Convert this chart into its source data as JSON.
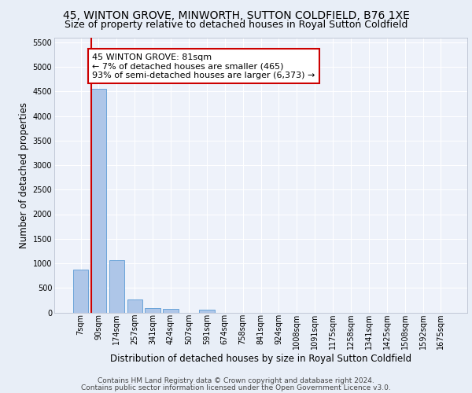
{
  "title_line1": "45, WINTON GROVE, MINWORTH, SUTTON COLDFIELD, B76 1XE",
  "title_line2": "Size of property relative to detached houses in Royal Sutton Coldfield",
  "xlabel": "Distribution of detached houses by size in Royal Sutton Coldfield",
  "ylabel": "Number of detached properties",
  "footer_line1": "Contains HM Land Registry data © Crown copyright and database right 2024.",
  "footer_line2": "Contains public sector information licensed under the Open Government Licence v3.0.",
  "categories": [
    "7sqm",
    "90sqm",
    "174sqm",
    "257sqm",
    "341sqm",
    "424sqm",
    "507sqm",
    "591sqm",
    "674sqm",
    "758sqm",
    "841sqm",
    "924sqm",
    "1008sqm",
    "1091sqm",
    "1175sqm",
    "1258sqm",
    "1341sqm",
    "1425sqm",
    "1508sqm",
    "1592sqm",
    "1675sqm"
  ],
  "values": [
    880,
    4550,
    1060,
    270,
    85,
    80,
    0,
    55,
    0,
    0,
    0,
    0,
    0,
    0,
    0,
    0,
    0,
    0,
    0,
    0,
    0
  ],
  "bar_color": "#aec6e8",
  "bar_edge_color": "#5b9bd5",
  "vertical_line_color": "#cc0000",
  "annotation_text": "45 WINTON GROVE: 81sqm\n← 7% of detached houses are smaller (465)\n93% of semi-detached houses are larger (6,373) →",
  "annotation_box_color": "#ffffff",
  "annotation_box_edge_color": "#cc0000",
  "ylim": [
    0,
    5600
  ],
  "yticks": [
    0,
    500,
    1000,
    1500,
    2000,
    2500,
    3000,
    3500,
    4000,
    4500,
    5000,
    5500
  ],
  "bg_color": "#e8eef7",
  "plot_bg_color": "#eef2fa",
  "grid_color": "#ffffff",
  "title_fontsize": 10,
  "subtitle_fontsize": 9,
  "axis_label_fontsize": 8.5,
  "tick_fontsize": 7,
  "annotation_fontsize": 8,
  "footer_fontsize": 6.5
}
